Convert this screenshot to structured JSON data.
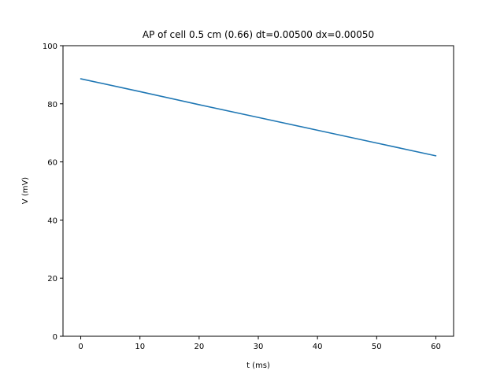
{
  "chart_data": {
    "type": "line",
    "title": "AP of cell 0.5 cm (0.66) dt=0.00500 dx=0.00050",
    "xlabel": "t (ms)",
    "ylabel": "V (mV)",
    "xlim": [
      -3,
      63
    ],
    "ylim": [
      0,
      100
    ],
    "xticks": [
      0,
      10,
      20,
      30,
      40,
      50,
      60
    ],
    "yticks": [
      0,
      20,
      40,
      60,
      80,
      100
    ],
    "xtick_labels": [
      "0",
      "10",
      "20",
      "30",
      "40",
      "50",
      "60"
    ],
    "ytick_labels": [
      "0",
      "20",
      "40",
      "60",
      "80",
      "100"
    ],
    "grid": false,
    "series": [
      {
        "color": "#1f77b4",
        "x": [
          0,
          10,
          20,
          30,
          40,
          50,
          60
        ],
        "y": [
          88.6,
          84.2,
          79.7,
          75.3,
          70.9,
          66.5,
          62.1
        ]
      }
    ]
  }
}
